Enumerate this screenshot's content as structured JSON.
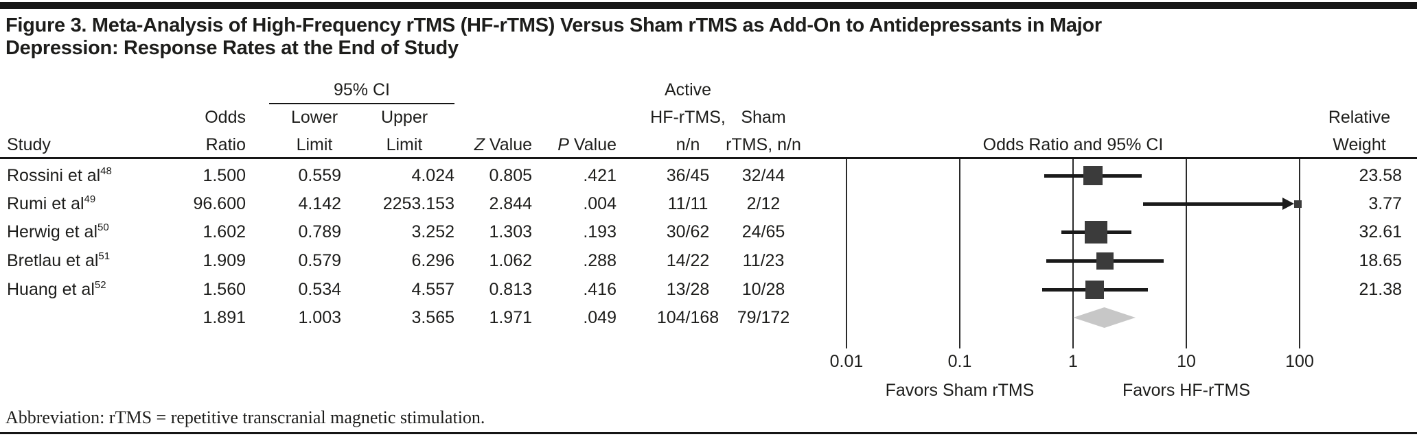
{
  "figure": {
    "title_lines": [
      "Figure 3. Meta-Analysis of High-Frequency rTMS (HF-rTMS) Versus Sham rTMS as Add-On to Antidepressants in Major",
      "Depression: Response Rates at the End of Study"
    ],
    "abbreviation": "Abbreviation: rTMS = repetitive transcranial magnetic stimulation."
  },
  "table": {
    "headers": {
      "study": "Study",
      "odds_ratio": [
        "Odds",
        "Ratio"
      ],
      "ci_group": "95% CI",
      "lower_limit": [
        "Lower",
        "Limit"
      ],
      "upper_limit": [
        "Upper",
        "Limit"
      ],
      "z_value": [
        "Z",
        " Value"
      ],
      "p_value": [
        "P",
        " Value"
      ],
      "active": [
        "Active",
        "HF-rTMS,",
        "n/n"
      ],
      "sham": [
        "Sham",
        "rTMS, n/n"
      ],
      "plot_column": "Odds Ratio and 95% CI",
      "relative_weight": [
        "Relative",
        "Weight"
      ]
    }
  },
  "chart_data": {
    "type": "forest",
    "x_axis": {
      "scale": "log10",
      "min": 0.01,
      "max": 100,
      "ticks": [
        "0.01",
        "0.1",
        "1",
        "10",
        "100"
      ]
    },
    "plot_title": "Odds Ratio and 95% CI",
    "favors_left": "Favors Sham rTMS",
    "favors_right": "Favors HF-rTMS",
    "rows": [
      {
        "study": "Rossini et al",
        "ref": "48",
        "or": "1.500",
        "lower": "0.559",
        "upper": "4.024",
        "z": "0.805",
        "p": ".421",
        "active": "36/45",
        "sham": "32/44",
        "weight": "23.58"
      },
      {
        "study": "Rumi et al",
        "ref": "49",
        "or": "96.600",
        "lower": "4.142",
        "upper": "2253.153",
        "z": "2.844",
        "p": ".004",
        "active": "11/11",
        "sham": "2/12",
        "weight": "3.77"
      },
      {
        "study": "Herwig et al",
        "ref": "50",
        "or": "1.602",
        "lower": "0.789",
        "upper": "3.252",
        "z": "1.303",
        "p": ".193",
        "active": "30/62",
        "sham": "24/65",
        "weight": "32.61"
      },
      {
        "study": "Bretlau et al",
        "ref": "51",
        "or": "1.909",
        "lower": "0.579",
        "upper": "6.296",
        "z": "1.062",
        "p": ".288",
        "active": "14/22",
        "sham": "11/23",
        "weight": "18.65"
      },
      {
        "study": "Huang et al",
        "ref": "52",
        "or": "1.560",
        "lower": "0.534",
        "upper": "4.557",
        "z": "0.813",
        "p": ".416",
        "active": "13/28",
        "sham": "10/28",
        "weight": "21.38"
      }
    ],
    "summary": {
      "study": "",
      "ref": "",
      "or": "1.891",
      "lower": "1.003",
      "upper": "3.565",
      "z": "1.971",
      "p": ".049",
      "active": "104/168",
      "sham": "79/172",
      "weight": ""
    }
  }
}
